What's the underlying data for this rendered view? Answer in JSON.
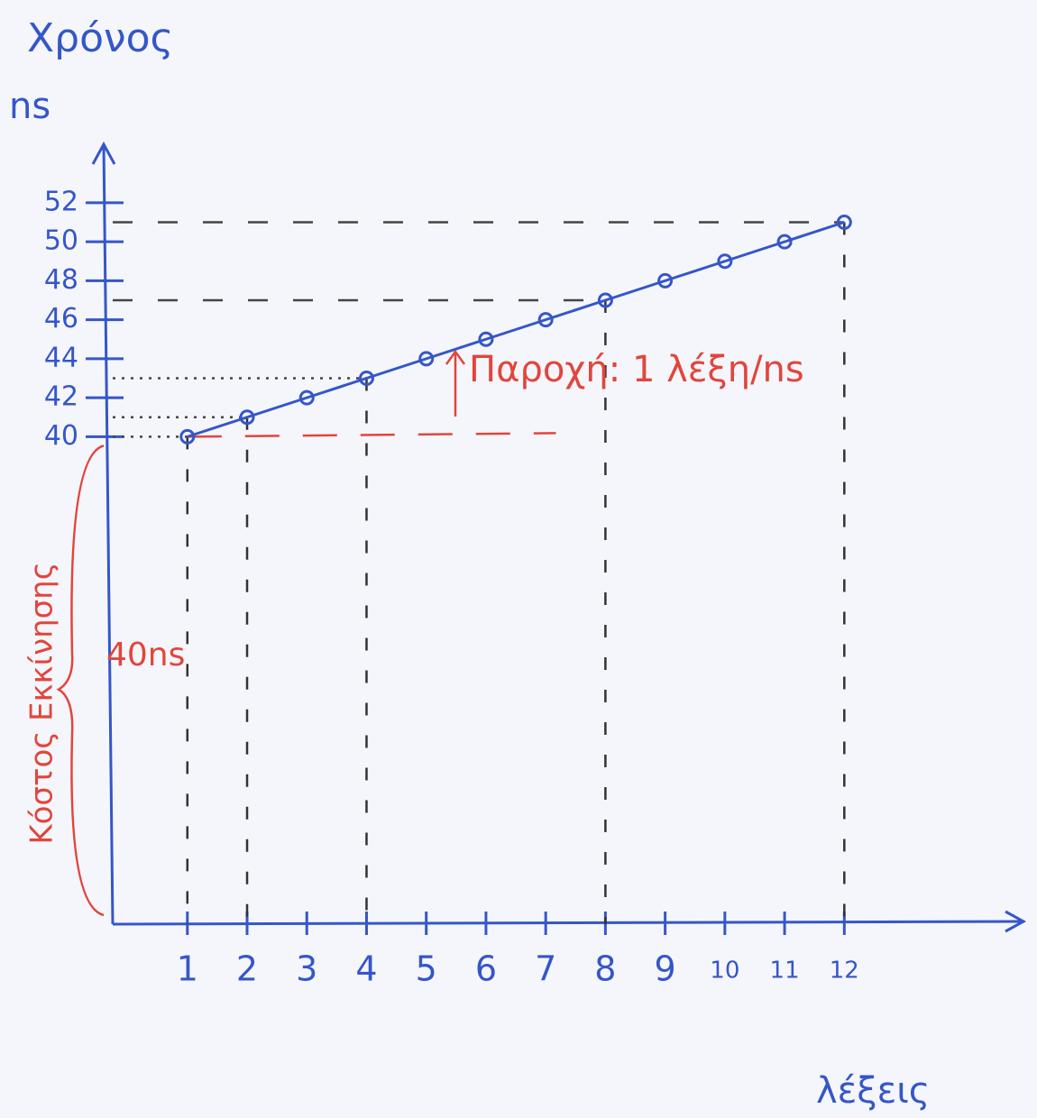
{
  "chart_data": {
    "type": "line",
    "title": "Χρόνος",
    "y_label": "ns",
    "x_label": "λέξεις",
    "x": [
      1,
      2,
      3,
      4,
      5,
      6,
      7,
      8,
      9,
      10,
      11,
      12
    ],
    "values": [
      40,
      41,
      42,
      43,
      44,
      45,
      46,
      47,
      48,
      49,
      50,
      51
    ],
    "color": "#3556c9",
    "xlim": [
      -0.25,
      15
    ],
    "ylim": [
      15,
      55
    ],
    "xticks": [
      1,
      2,
      3,
      4,
      5,
      6,
      7,
      8,
      9,
      10,
      11,
      12
    ],
    "yticks": [
      40,
      42,
      44,
      46,
      48,
      50,
      52
    ],
    "guides": [
      1,
      2,
      4,
      8,
      12
    ],
    "annotations": {
      "throughput": "Παροχή: 1 λέξη/ns",
      "startup_time": "40ns",
      "startup_cost": "Κόστος Εκκίνησης"
    },
    "annotation_color": "#e2453c"
  }
}
